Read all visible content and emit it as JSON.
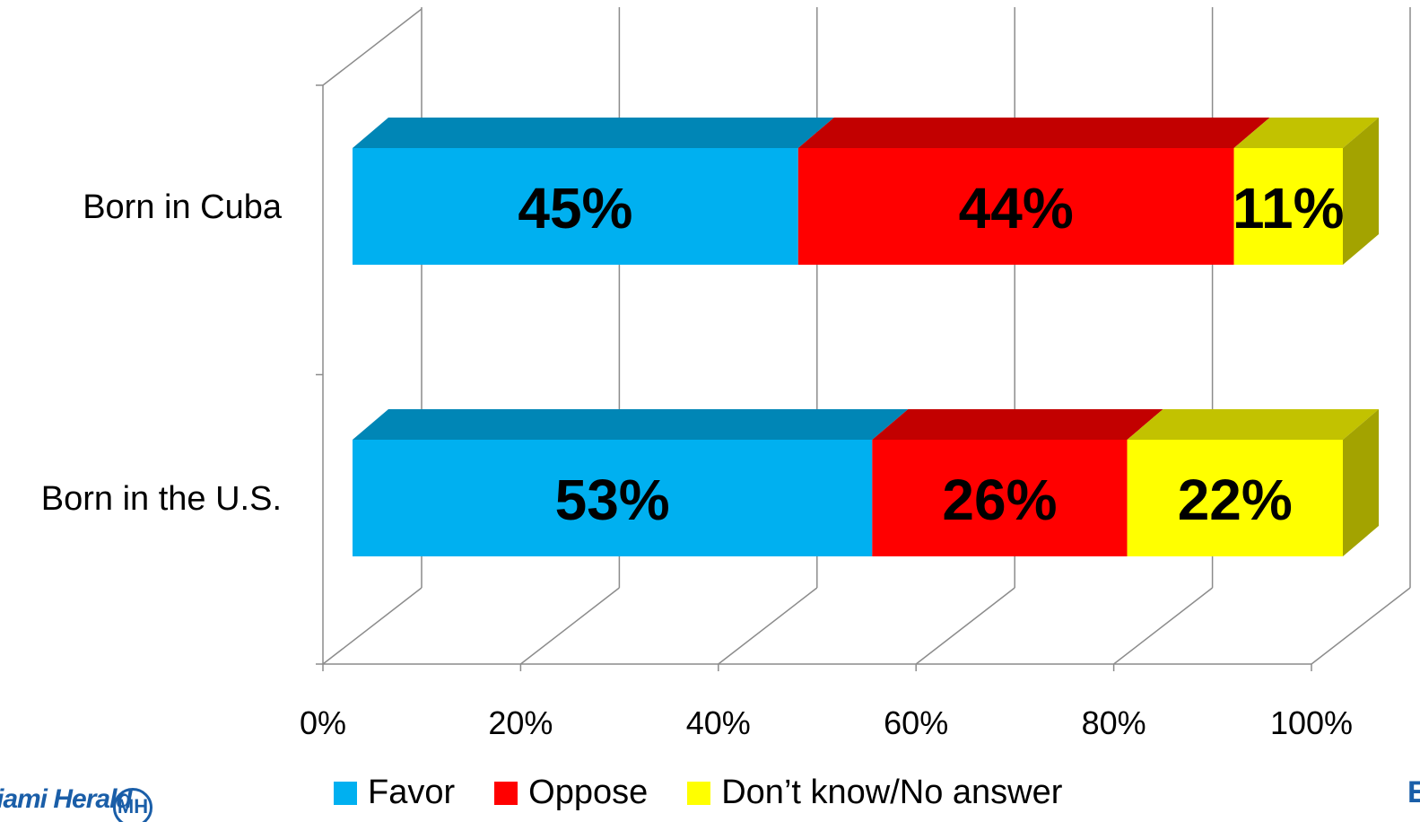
{
  "chart_data": {
    "type": "bar",
    "orientation": "horizontal",
    "stacked": true,
    "style": "3d",
    "categories": [
      "Born in Cuba",
      "Born in the U.S."
    ],
    "series": [
      {
        "name": "Favor",
        "color": "#00B0F0",
        "values": [
          45,
          53
        ],
        "labels": [
          "45%",
          "53%"
        ]
      },
      {
        "name": "Oppose",
        "color": "#FF0000",
        "values": [
          44,
          26
        ],
        "labels": [
          "44%",
          "26%"
        ]
      },
      {
        "name": "Don’t know/No answer",
        "color": "#FFFF00",
        "values": [
          11,
          22
        ],
        "labels": [
          "11%",
          "22%"
        ]
      }
    ],
    "xlim": [
      0,
      100
    ],
    "xticks": [
      "0%",
      "20%",
      "40%",
      "60%",
      "80%",
      "100%"
    ],
    "grid": true,
    "legend_position": "bottom"
  },
  "footer": {
    "logo_text": "Miami Herald",
    "logo_seal_text": "MH",
    "corner_mark_text": "E"
  }
}
